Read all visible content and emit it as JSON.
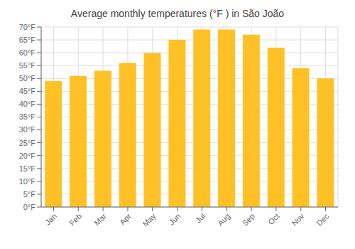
{
  "chart_data": {
    "type": "bar",
    "title": "Average monthly temperatures (°F ) in São João",
    "categories": [
      "Jan",
      "Feb",
      "Mar",
      "Apr",
      "May",
      "Jun",
      "Jul",
      "Aug",
      "Sep",
      "Oct",
      "Nov",
      "Dec"
    ],
    "values": [
      49,
      51,
      53,
      56,
      60,
      65,
      69,
      69,
      67,
      62,
      54,
      50
    ],
    "color": "#FFC125",
    "ylim": [
      0,
      70
    ],
    "yticks": [
      {
        "value": 0,
        "label": "0°F"
      },
      {
        "value": 5,
        "label": "5°F"
      },
      {
        "value": 10,
        "label": "10°F"
      },
      {
        "value": 15,
        "label": "15°F"
      },
      {
        "value": 20,
        "label": "20°F"
      },
      {
        "value": 25,
        "label": "25°F"
      },
      {
        "value": 30,
        "label": "30°F"
      },
      {
        "value": 35,
        "label": "35°F"
      },
      {
        "value": 40,
        "label": "40°F"
      },
      {
        "value": 45,
        "label": "45°F"
      },
      {
        "value": 50,
        "label": "50°F"
      },
      {
        "value": 55,
        "label": "55°F"
      },
      {
        "value": 60,
        "label": "60°F"
      },
      {
        "value": 65,
        "label": "65°F"
      },
      {
        "value": 70,
        "label": "70°F"
      }
    ],
    "grid": true
  }
}
